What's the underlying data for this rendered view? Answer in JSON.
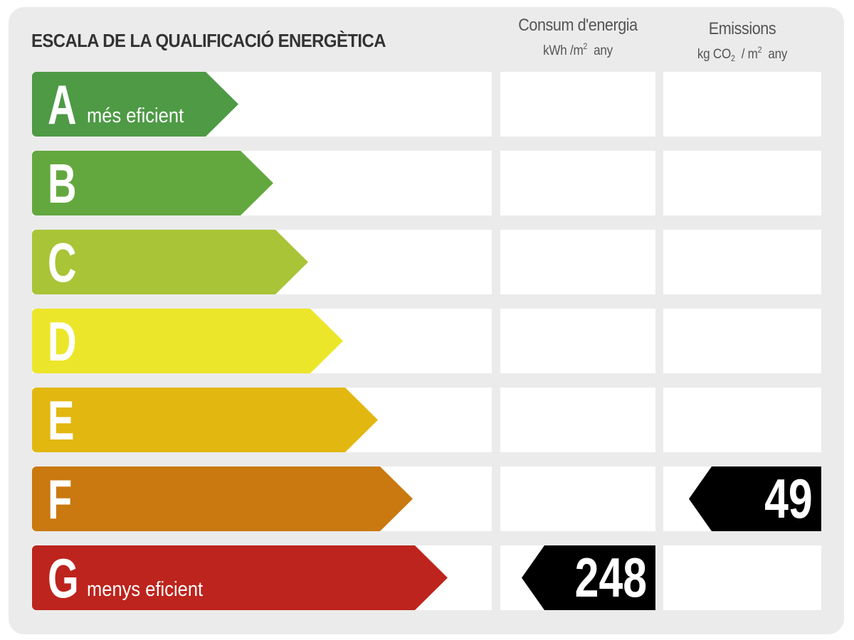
{
  "title": "ESCALA DE LA QUALIFICACIÓ ENERGÈTICA",
  "columns": {
    "energy": {
      "label": "Consum d'energia",
      "unit_a": "kWh /m",
      "unit_sup": "2",
      "unit_b": "any"
    },
    "emissions": {
      "label": "Emissions",
      "unit_a": "kg CO",
      "unit_sub": "2",
      "unit_mid": "/ m",
      "unit_sup": "2",
      "unit_b": "any"
    }
  },
  "ratings": [
    {
      "letter": "A",
      "caption": "més eficient",
      "color": "#4e9a45"
    },
    {
      "letter": "B",
      "caption": "",
      "color": "#63a83f"
    },
    {
      "letter": "C",
      "caption": "",
      "color": "#a9c437"
    },
    {
      "letter": "D",
      "caption": "",
      "color": "#ece62a"
    },
    {
      "letter": "E",
      "caption": "",
      "color": "#e2b710"
    },
    {
      "letter": "F",
      "caption": "",
      "color": "#c9790f"
    },
    {
      "letter": "G",
      "caption": "menys eficient",
      "color": "#bd241d"
    }
  ],
  "results": {
    "energy": {
      "rating": "G",
      "value": "248"
    },
    "emissions": {
      "rating": "F",
      "value": "49"
    }
  }
}
